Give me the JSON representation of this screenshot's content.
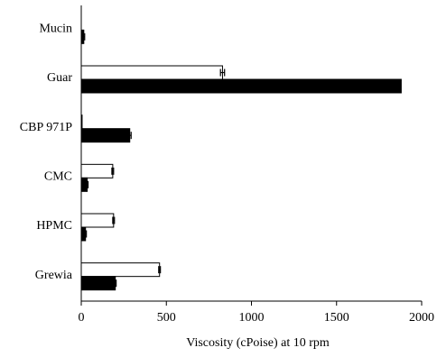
{
  "chart_data": {
    "type": "bar",
    "orientation": "horizontal",
    "categories": [
      "Mucin",
      "Guar",
      "CBP 971P",
      "CMC",
      "HPMC",
      "Grewia"
    ],
    "series": [
      {
        "values": [
          0,
          830,
          5,
          185,
          190,
          460
        ],
        "errors": [
          0,
          12,
          0,
          5,
          5,
          5
        ],
        "color": "#ffffff",
        "edge_color": "#000000"
      },
      {
        "values": [
          15,
          1880,
          285,
          35,
          25,
          200
        ],
        "errors": [
          5,
          0,
          8,
          5,
          5,
          5
        ],
        "color": "#000000",
        "edge_color": "#000000"
      }
    ],
    "xlabel": "Viscosity (cPoise) at 10 rpm",
    "xticks": [
      0,
      500,
      1000,
      1500,
      2000
    ],
    "xlim": [
      0,
      2000
    ],
    "grid": false,
    "legend": "none"
  }
}
